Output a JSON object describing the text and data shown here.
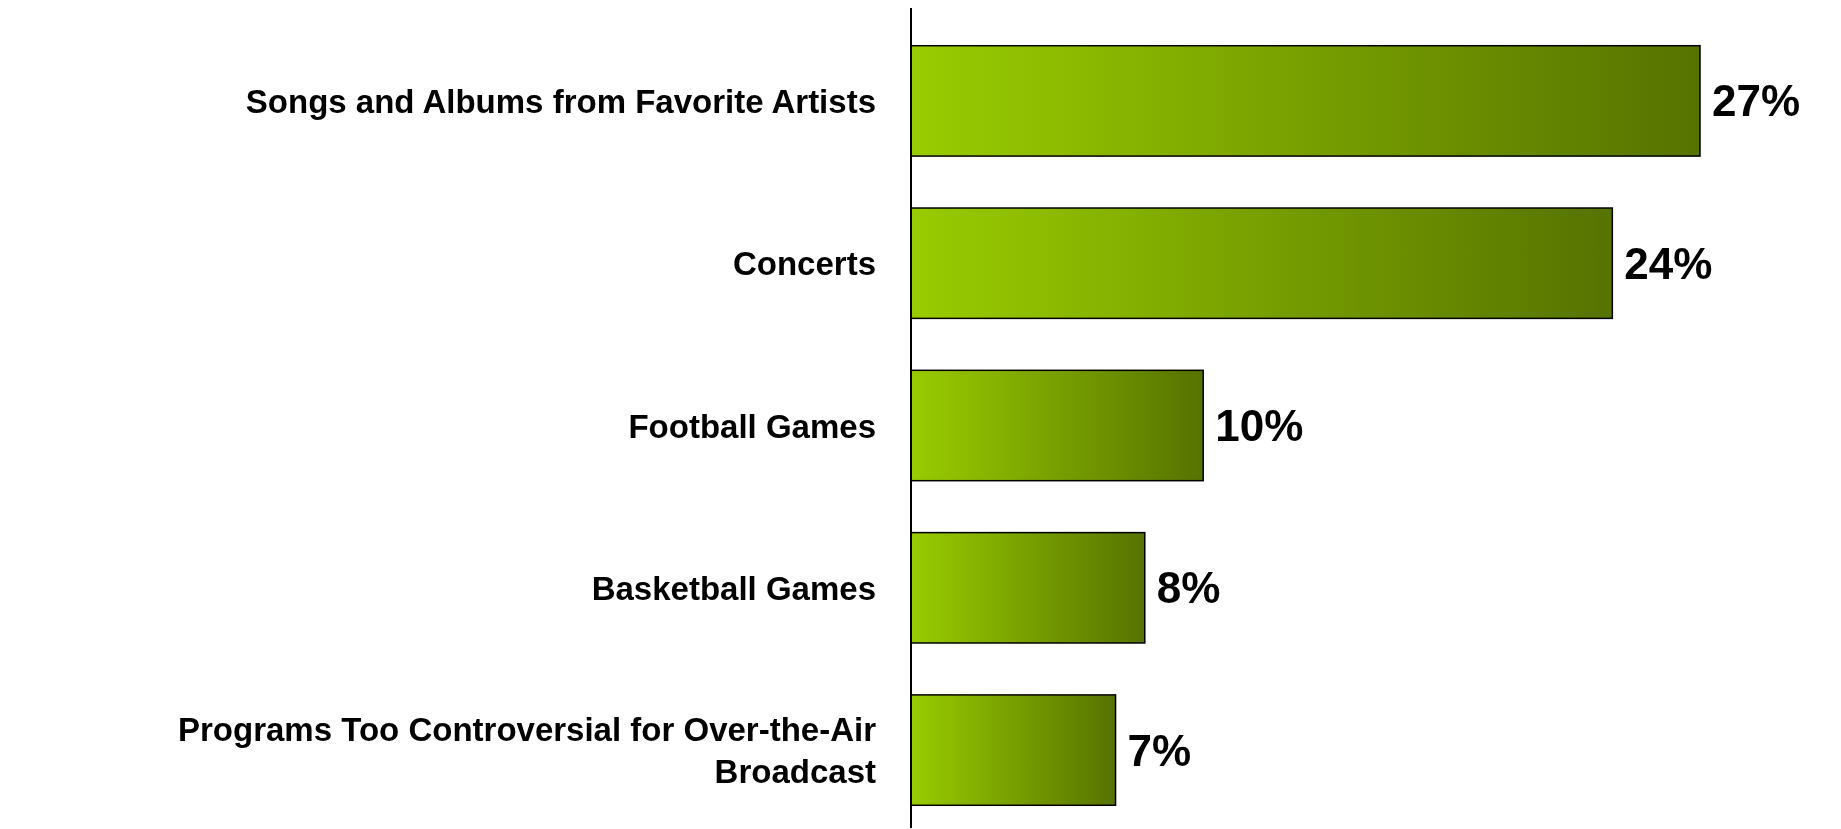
{
  "chart_data": {
    "type": "bar",
    "orientation": "horizontal",
    "categories": [
      "Songs and Albums from Favorite Artists",
      "Concerts",
      "Football Games",
      "Basketball Games",
      "Programs Too Controversial for Over-the-Air Broadcast"
    ],
    "values": [
      27,
      24,
      10,
      8,
      7
    ],
    "value_labels": [
      "27%",
      "24%",
      "10%",
      "8%",
      "7%"
    ],
    "color": "#99cc00"
  }
}
